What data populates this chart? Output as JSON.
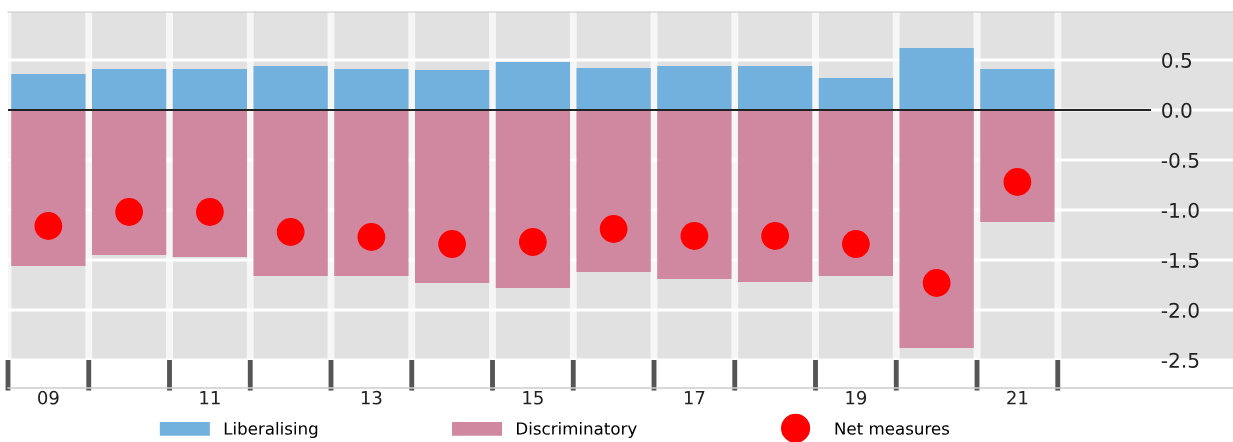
{
  "chart_data": {
    "type": "bar",
    "categories": [
      "09",
      null,
      "11",
      null,
      "13",
      null,
      "15",
      null,
      "17",
      null,
      "19",
      null,
      "21"
    ],
    "series": [
      {
        "name": "Liberalising",
        "color": "#72b0dd",
        "values": [
          0.36,
          0.41,
          0.41,
          0.44,
          0.41,
          0.4,
          0.48,
          0.42,
          0.44,
          0.44,
          0.32,
          0.62,
          0.41
        ]
      },
      {
        "name": "Discriminatory",
        "color": "#cf88a0",
        "values": [
          -1.56,
          -1.45,
          -1.47,
          -1.66,
          -1.66,
          -1.73,
          -1.78,
          -1.62,
          -1.69,
          -1.72,
          -1.66,
          -2.38,
          -1.12
        ]
      },
      {
        "name": "Net measures",
        "type": "scatter",
        "color": "#ff0000",
        "values": [
          -1.16,
          -1.02,
          -1.02,
          -1.22,
          -1.27,
          -1.34,
          -1.32,
          -1.19,
          -1.26,
          -1.26,
          -1.34,
          -1.73,
          -0.72
        ]
      }
    ],
    "ylim": [
      -2.5,
      0.98
    ],
    "yticks": [
      {
        "value": 0.5,
        "label": "0.5"
      },
      {
        "value": 0,
        "label": "0.0"
      },
      {
        "value": -0.5,
        "label": "-0.5"
      },
      {
        "value": -1,
        "label": "-1.0"
      },
      {
        "value": -1.5,
        "label": "-1.5"
      },
      {
        "value": -2,
        "label": "-2.0"
      },
      {
        "value": -2.5,
        "label": "-2.5"
      }
    ],
    "stacked": true,
    "grid": true,
    "legend": "bottom",
    "marker": "circle",
    "ref_lines": [
      {
        "axis": "y",
        "value": 0,
        "color": "#222222",
        "line_style": "solid"
      }
    ]
  }
}
